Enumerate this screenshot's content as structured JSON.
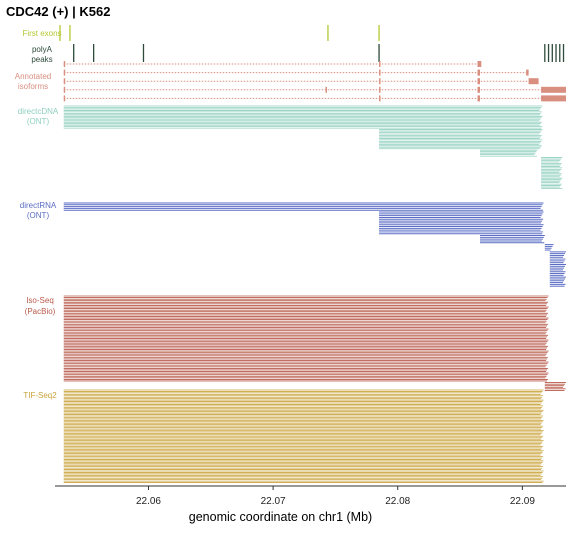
{
  "title": "CDC42 (+) | K562",
  "chart_data": {
    "type": "genome-track",
    "xlabel": "genomic coordinate on chr1 (Mb)",
    "xlim": [
      22.0525,
      22.0935
    ],
    "xticks": [
      "22.06",
      "22.07",
      "22.08",
      "22.09"
    ],
    "xtick_values": [
      22.06,
      22.07,
      22.08,
      22.09
    ],
    "colors": {
      "first_exons": "#b5c832",
      "polya": "#2d4a3a",
      "annotated": "#d98f80",
      "directcdna": "#8fcfbe",
      "directrna": "#5a6cc4",
      "isoseq": "#b85a4a",
      "tifseq": "#c9a23a"
    },
    "tracks": [
      {
        "key": "first_exons",
        "label": [
          "First exons"
        ],
        "color": "#b5c832",
        "positions": [
          22.0529,
          22.0537,
          22.0744,
          22.0785
        ]
      },
      {
        "key": "polya",
        "label": [
          "polyA",
          "peaks"
        ],
        "color": "#2d4a3a",
        "positions": [
          22.054,
          22.0556,
          22.0596,
          22.0785,
          22.0918,
          22.0921,
          22.0924,
          22.0927,
          22.093,
          22.0933
        ]
      },
      {
        "key": "annotated",
        "label": [
          "Annotated",
          "isoforms"
        ],
        "color": "#d98f80",
        "isoforms": [
          {
            "start": 22.0532,
            "end": 22.0867,
            "exons": [
              [
                22.0532,
                22.0533
              ],
              [
                22.0785,
                22.0786
              ],
              [
                22.0864,
                22.0867
              ]
            ]
          },
          {
            "start": 22.0532,
            "end": 22.0905,
            "exons": [
              [
                22.0532,
                22.0533
              ],
              [
                22.0785,
                22.0786
              ],
              [
                22.0864,
                22.0866
              ],
              [
                22.0903,
                22.0905
              ]
            ]
          },
          {
            "start": 22.0532,
            "end": 22.0913,
            "exons": [
              [
                22.0532,
                22.0533
              ],
              [
                22.0785,
                22.0786
              ],
              [
                22.0864,
                22.0866
              ],
              [
                22.0905,
                22.0913
              ]
            ]
          },
          {
            "start": 22.0532,
            "end": 22.0935,
            "exons": [
              [
                22.0532,
                22.0533
              ],
              [
                22.0742,
                22.0743
              ],
              [
                22.0785,
                22.0786
              ],
              [
                22.0864,
                22.0866
              ],
              [
                22.0915,
                22.0935
              ]
            ]
          },
          {
            "start": 22.0532,
            "end": 22.0935,
            "exons": [
              [
                22.0532,
                22.0533
              ],
              [
                22.0785,
                22.0786
              ],
              [
                22.0864,
                22.0866
              ],
              [
                22.0915,
                22.0935
              ]
            ]
          }
        ]
      },
      {
        "key": "directcdna",
        "label": [
          "directcDNA",
          "(ONT)"
        ],
        "color": "#8fcfbe",
        "read_groups": [
          {
            "count": 16,
            "start": 22.0532,
            "end": 22.0916
          },
          {
            "count": 14,
            "start": 22.0785,
            "end": 22.0916
          },
          {
            "count": 5,
            "start": 22.0866,
            "end": 22.0912
          },
          {
            "count": 22,
            "start": 22.0915,
            "end": 22.0932
          }
        ]
      },
      {
        "key": "directrna",
        "label": [
          "directRNA",
          "(ONT)"
        ],
        "color": "#5a6cc4",
        "read_groups": [
          {
            "count": 5,
            "start": 22.0532,
            "end": 22.0917
          },
          {
            "count": 13,
            "start": 22.0785,
            "end": 22.0917
          },
          {
            "count": 5,
            "start": 22.0866,
            "end": 22.0918
          },
          {
            "count": 4,
            "start": 22.0918,
            "end": 22.0925
          },
          {
            "count": 20,
            "start": 22.0922,
            "end": 22.0935
          }
        ]
      },
      {
        "key": "isoseq",
        "label": [
          "Iso-Seq",
          "(PacBio)"
        ],
        "color": "#b85a4a",
        "read_groups": [
          {
            "count": 55,
            "start": 22.0532,
            "end": 22.0921
          },
          {
            "count": 6,
            "start": 22.0918,
            "end": 22.0935
          }
        ]
      },
      {
        "key": "tifseq",
        "label": [
          "TIF-Seq2"
        ],
        "color": "#c9a23a",
        "read_groups": [
          {
            "count": 65,
            "start": 22.0532,
            "end": 22.0917
          }
        ]
      }
    ]
  }
}
